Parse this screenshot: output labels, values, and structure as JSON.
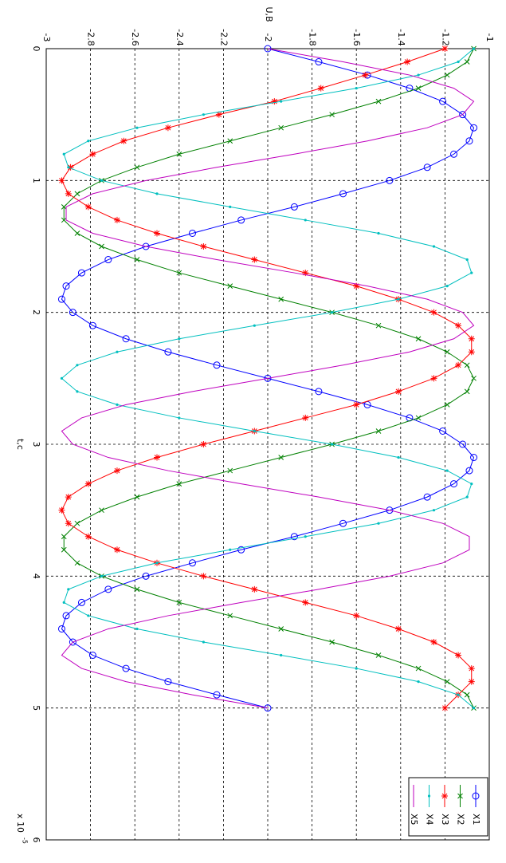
{
  "chart_data": {
    "type": "line",
    "orientation": "rotated-clockwise",
    "ylabel": "U,B",
    "xlabel": "t,c",
    "x_exponent_base": "x 10",
    "x_exponent": "-5",
    "x": [
      0,
      0.1,
      0.2,
      0.3,
      0.4,
      0.5,
      0.6,
      0.7,
      0.8,
      0.9,
      1,
      1.1,
      1.2,
      1.3,
      1.4,
      1.5,
      1.6,
      1.7,
      1.8,
      1.9,
      2,
      2.1,
      2.2,
      2.3,
      2.4,
      2.5,
      2.6,
      2.7,
      2.8,
      2.9,
      3,
      3.1,
      3.2,
      3.3,
      3.4,
      3.5,
      3.6,
      3.7,
      3.8,
      3.9,
      4,
      4.1,
      4.2,
      4.3,
      4.4,
      4.5,
      4.6,
      4.7,
      4.8,
      4.9,
      5
    ],
    "xlim": [
      0,
      6
    ],
    "xticks": [
      0,
      1,
      2,
      3,
      4,
      5,
      6
    ],
    "ylim": [
      -3,
      -1
    ],
    "yticks": [
      -3,
      -2.8,
      -2.6,
      -2.4,
      -2.2,
      -2,
      -1.8,
      -1.6,
      -1.4,
      -1.2,
      -1
    ],
    "grid": true,
    "legend": "bottom-right",
    "series": [
      {
        "name": "X1",
        "color": "#0000ff",
        "marker": "circle",
        "values": [
          -2,
          -1.77,
          -1.55,
          -1.36,
          -1.21,
          -1.12,
          -1.07,
          -1.09,
          -1.16,
          -1.28,
          -1.45,
          -1.66,
          -1.88,
          -2.12,
          -2.34,
          -2.55,
          -2.72,
          -2.84,
          -2.91,
          -2.93,
          -2.88,
          -2.79,
          -2.64,
          -2.45,
          -2.23,
          -2,
          -1.77,
          -1.55,
          -1.36,
          -1.21,
          -1.12,
          -1.07,
          -1.09,
          -1.16,
          -1.28,
          -1.45,
          -1.66,
          -1.88,
          -2.12,
          -2.34,
          -2.55,
          -2.72,
          -2.84,
          -2.91,
          -2.93,
          -2.88,
          -2.79,
          -2.64,
          -2.45,
          -2.23,
          -2
        ]
      },
      {
        "name": "X2",
        "color": "#008000",
        "marker": "x",
        "values": [
          -1.07,
          -1.1,
          -1.19,
          -1.32,
          -1.5,
          -1.71,
          -1.94,
          -2.17,
          -2.4,
          -2.59,
          -2.75,
          -2.86,
          -2.92,
          -2.92,
          -2.86,
          -2.75,
          -2.59,
          -2.4,
          -2.17,
          -1.94,
          -1.71,
          -1.5,
          -1.32,
          -1.19,
          -1.1,
          -1.07,
          -1.1,
          -1.19,
          -1.32,
          -1.5,
          -1.71,
          -1.94,
          -2.17,
          -2.4,
          -2.59,
          -2.75,
          -2.86,
          -2.92,
          -2.92,
          -2.86,
          -2.75,
          -2.59,
          -2.4,
          -2.17,
          -1.94,
          -1.71,
          -1.5,
          -1.32,
          -1.19,
          -1.1,
          -1.07
        ]
      },
      {
        "name": "X3",
        "color": "#ff0000",
        "marker": "star",
        "values": [
          -1.2,
          -1.37,
          -1.56,
          -1.76,
          -1.97,
          -2.22,
          -2.45,
          -2.65,
          -2.79,
          -2.89,
          -2.93,
          -2.9,
          -2.81,
          -2.68,
          -2.5,
          -2.29,
          -2.06,
          -1.83,
          -1.6,
          -1.41,
          -1.25,
          -1.14,
          -1.08,
          -1.08,
          -1.14,
          -1.25,
          -1.41,
          -1.6,
          -1.83,
          -2.06,
          -2.29,
          -2.5,
          -2.68,
          -2.81,
          -2.9,
          -2.93,
          -2.9,
          -2.81,
          -2.68,
          -2.5,
          -2.29,
          -2.06,
          -1.83,
          -1.6,
          -1.41,
          -1.25,
          -1.14,
          -1.08,
          -1.08,
          -1.14,
          -1.2
        ]
      },
      {
        "name": "X4",
        "color": "#00bfbf",
        "marker": "dot",
        "values": [
          -1.07,
          -1.14,
          -1.32,
          -1.6,
          -1.94,
          -2.29,
          -2.59,
          -2.81,
          -2.92,
          -2.9,
          -2.75,
          -2.5,
          -2.17,
          -1.83,
          -1.5,
          -1.25,
          -1.1,
          -1.08,
          -1.19,
          -1.41,
          -1.71,
          -2.06,
          -2.4,
          -2.68,
          -2.86,
          -2.93,
          -2.86,
          -2.68,
          -2.4,
          -2.06,
          -1.71,
          -1.41,
          -1.19,
          -1.08,
          -1.1,
          -1.25,
          -1.5,
          -1.83,
          -2.17,
          -2.5,
          -2.75,
          -2.9,
          -2.92,
          -2.81,
          -2.59,
          -2.29,
          -1.94,
          -1.6,
          -1.32,
          -1.14,
          -1.07
        ]
      },
      {
        "name": "X5",
        "color": "#bf00bf",
        "marker": "none",
        "values": [
          -2,
          -1.66,
          -1.36,
          -1.16,
          -1.07,
          -1.12,
          -1.28,
          -1.55,
          -1.88,
          -2.23,
          -2.55,
          -2.79,
          -2.91,
          -2.91,
          -2.79,
          -2.55,
          -2.23,
          -1.88,
          -1.55,
          -1.28,
          -1.12,
          -1.07,
          -1.16,
          -1.36,
          -1.66,
          -2,
          -2.34,
          -2.64,
          -2.84,
          -2.93,
          -2.88,
          -2.72,
          -2.45,
          -2.12,
          -1.77,
          -1.45,
          -1.21,
          -1.09,
          -1.09,
          -1.21,
          -1.45,
          -1.77,
          -2.12,
          -2.45,
          -2.72,
          -2.88,
          -2.93,
          -2.84,
          -2.64,
          -2.34,
          -2
        ]
      }
    ]
  }
}
